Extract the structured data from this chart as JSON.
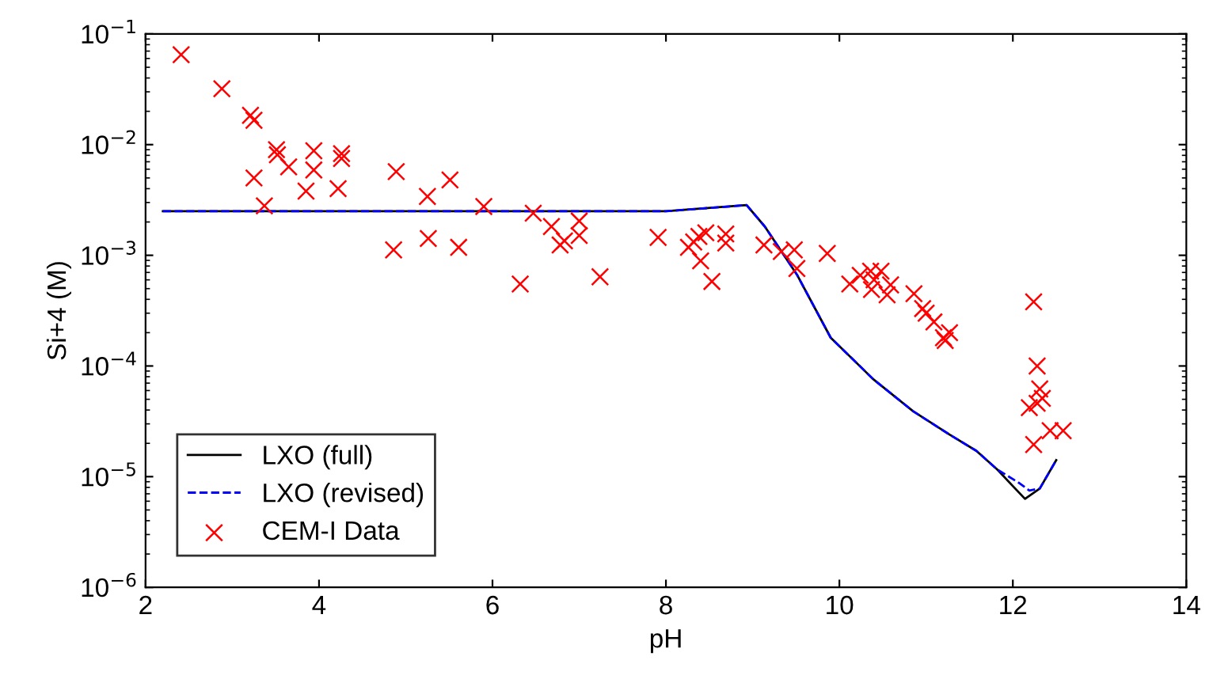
{
  "chart_data": {
    "type": "line",
    "xlabel": "pH",
    "ylabel": "Si+4 (M)",
    "log": "y",
    "grid": false,
    "legend": "bottom left",
    "xlim": [
      2,
      14
    ],
    "xticks": [
      2,
      4,
      6,
      8,
      10,
      12,
      14
    ],
    "ylim": [
      1e-06,
      0.1
    ],
    "yticks": [
      {
        "value": 1e-06,
        "label": "10$^{−6}$"
      },
      {
        "value": 1e-05,
        "label": "10$^{−5}$"
      },
      {
        "value": 0.0001,
        "label": "10$^{−4}$"
      },
      {
        "value": 0.001,
        "label": "10$^{−3}$"
      },
      {
        "value": 0.01,
        "label": "10$^{−2}$"
      },
      {
        "value": 0.1,
        "label": "10$^{−1}$"
      }
    ],
    "series": [
      {
        "name": "LXO (full)",
        "type": "line",
        "color": "#000000",
        "line_style": "solid",
        "marker": "none",
        "x": [
          2.2,
          5.0,
          8.0,
          8.93,
          9.14,
          9.51,
          9.9,
          10.39,
          10.85,
          11.27,
          11.58,
          11.82,
          12.14,
          12.31,
          12.5
        ],
        "values": [
          0.0025,
          0.0025,
          0.0025,
          0.00284,
          0.00182,
          0.00067,
          0.00018,
          7.6e-05,
          3.9e-05,
          2.4e-05,
          1.71e-05,
          1.16e-05,
          6.3e-06,
          7.8e-06,
          1.41e-05
        ]
      },
      {
        "name": "LXO (revised)",
        "type": "line",
        "color": "#0000ff",
        "line_style": "dashed",
        "marker": "none",
        "x": [
          2.2,
          5.0,
          8.0,
          8.93,
          9.14,
          9.51,
          9.9,
          10.39,
          10.85,
          11.27,
          11.58,
          11.82,
          12.06,
          12.19,
          12.31,
          12.5
        ],
        "values": [
          0.0025,
          0.0025,
          0.0025,
          0.00284,
          0.00182,
          0.00067,
          0.00018,
          7.6e-05,
          3.9e-05,
          2.4e-05,
          1.71e-05,
          1.16e-05,
          8.9e-06,
          7.5e-06,
          7.8e-06,
          1.41e-05
        ]
      },
      {
        "name": "CEM-I Data",
        "type": "scatter",
        "color": "#ff0000",
        "marker": "cross",
        "x": [
          2.41,
          2.88,
          3.21,
          3.25,
          3.25,
          3.37,
          3.51,
          3.52,
          3.65,
          3.85,
          3.94,
          3.94,
          4.22,
          4.26,
          4.26,
          4.86,
          4.89,
          5.25,
          5.26,
          5.51,
          5.61,
          5.9,
          6.32,
          6.47,
          6.68,
          7.0,
          7.0,
          6.78,
          6.83,
          7.24,
          7.91,
          8.26,
          8.32,
          8.38,
          8.46,
          8.4,
          8.53,
          8.69,
          8.69,
          9.13,
          9.33,
          9.48,
          9.51,
          9.86,
          10.12,
          10.24,
          10.36,
          10.48,
          10.4,
          10.37,
          10.59,
          10.55,
          10.86,
          10.96,
          11.0,
          11.09,
          11.2,
          11.27,
          11.22,
          12.24,
          12.28,
          12.31,
          12.34,
          12.19,
          12.28,
          12.24,
          12.43,
          12.58
        ],
        "values": [
          0.065,
          0.032,
          0.0184,
          0.0166,
          0.005,
          0.0028,
          0.009,
          0.0081,
          0.0063,
          0.0038,
          0.0088,
          0.0059,
          0.004,
          0.0083,
          0.0075,
          0.00112,
          0.0057,
          0.0034,
          0.00142,
          0.0048,
          0.00118,
          0.00276,
          0.00055,
          0.0024,
          0.00182,
          0.00204,
          0.00151,
          0.00124,
          0.00135,
          0.00064,
          0.00145,
          0.00118,
          0.00132,
          0.00148,
          0.0016,
          0.00089,
          0.00058,
          0.00156,
          0.00129,
          0.00124,
          0.00108,
          0.00112,
          0.00076,
          0.00104,
          0.00055,
          0.00066,
          0.00072,
          0.00072,
          0.0006,
          0.00049,
          0.00054,
          0.00044,
          0.00045,
          0.00033,
          0.0003,
          0.00025,
          0.00018,
          0.0002,
          0.00017,
          0.00038,
          0.0001,
          6.2e-05,
          5.1e-05,
          4.2e-05,
          4.6e-05,
          1.95e-05,
          2.6e-05,
          2.6e-05
        ]
      }
    ]
  }
}
